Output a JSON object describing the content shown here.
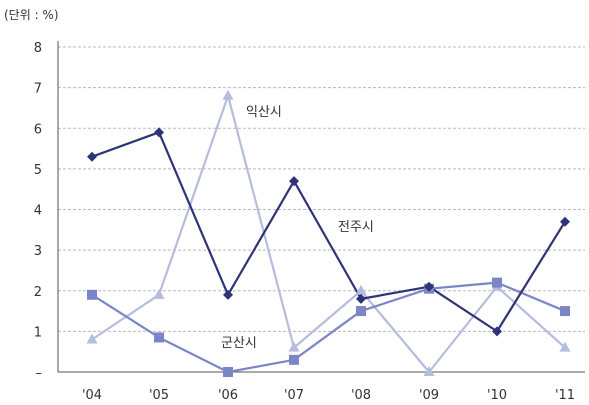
{
  "chart_data": {
    "type": "line",
    "unit_label": "(단위 : %)",
    "categories": [
      "'04",
      "'05",
      "'06",
      "'07",
      "'08",
      "'09",
      "'10",
      "'11"
    ],
    "y_tick_labels": [
      "–",
      "1",
      "2",
      "3",
      "4",
      "5",
      "6",
      "7",
      "8"
    ],
    "ylim": [
      0,
      8
    ],
    "grid": true,
    "series": [
      {
        "name": "전주시",
        "marker": "diamond",
        "color": "#2f3479",
        "values": [
          5.3,
          5.9,
          1.9,
          4.7,
          1.8,
          2.1,
          1.0,
          3.7
        ]
      },
      {
        "name": "익산시",
        "marker": "triangle",
        "color": "#b5bddc",
        "values": [
          0.8,
          1.9,
          6.8,
          0.6,
          2.0,
          0.0,
          2.1,
          0.6
        ]
      },
      {
        "name": "군산시",
        "marker": "square",
        "color": "#7b86c6",
        "values": [
          1.9,
          0.85,
          0.0,
          0.3,
          1.5,
          2.05,
          2.2,
          1.5
        ]
      }
    ]
  }
}
